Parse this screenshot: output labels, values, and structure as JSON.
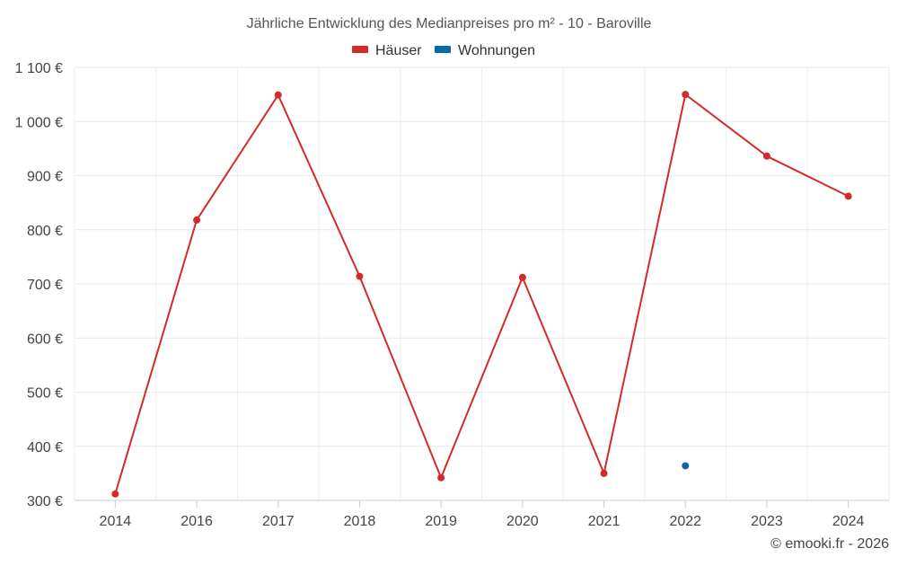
{
  "chart_data": {
    "type": "line",
    "title": "Jährliche Entwicklung des Medianpreises pro m² - 10 - Baroville",
    "categories": [
      "2014",
      "2016",
      "2017",
      "2018",
      "2019",
      "2020",
      "2021",
      "2022",
      "2023",
      "2024"
    ],
    "series": [
      {
        "name": "Häuser",
        "color": "#d32a2a",
        "values": [
          312,
          818,
          1049,
          714,
          342,
          712,
          350,
          1050,
          936,
          862
        ]
      },
      {
        "name": "Wohnungen",
        "color": "#0a6aa8",
        "values": [
          null,
          null,
          null,
          null,
          null,
          null,
          null,
          364,
          null,
          null
        ]
      }
    ],
    "y_ticks": [
      300,
      400,
      500,
      600,
      700,
      800,
      900,
      1000,
      1100
    ],
    "y_tick_labels": [
      "300 €",
      "400 €",
      "500 €",
      "600 €",
      "700 €",
      "800 €",
      "900 €",
      "1 000 €",
      "1 100 €"
    ],
    "ylim": [
      300,
      1100
    ],
    "xlabel": "",
    "ylabel": "",
    "grid": true,
    "legend_position": "top-center"
  },
  "credit": "© emooki.fr - 2026"
}
